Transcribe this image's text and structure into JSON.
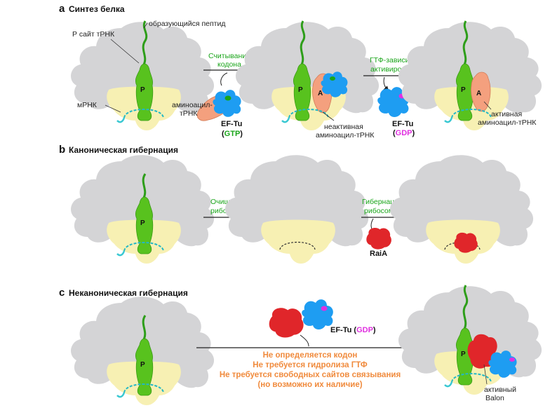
{
  "colors": {
    "large_subunit": "#d4d4d6",
    "small_subunit": "#f7f0b3",
    "p_site_trna": "#58c21e",
    "a_site_trna": "#f4a07e",
    "ef_tu": "#1e9df2",
    "nucleotide_gtp": "#1aa51a",
    "nucleotide_gdp": "#e030e0",
    "mrna": "#39c8d2",
    "raia_balon": "#e0262a",
    "process_label": "#1aa51a",
    "condition_text": "#f08a3c"
  },
  "panel_a": {
    "letter": "a",
    "title": "Синтез белка",
    "peptide_label": "образующийся  пептид",
    "p_site_label": "Р сайт тРНК",
    "mrna_label": "мРНК",
    "aminoacyl_label_1": "аминоацил-",
    "aminoacyl_label_2": "тРНК",
    "step1_line1": "Считывание",
    "step1_line2": "кодона",
    "step2_line1": "ГТФ-зависимое",
    "step2_line2": "активирование",
    "eftu": "EF-Tu",
    "gtp": "GTP",
    "gdp": "GDP",
    "inactive_1": "неактивная",
    "inactive_2": "аминоацил-тРНК",
    "active_1": "активная",
    "active_2": "аминоацил-тРНК",
    "p_letter": "P",
    "a_letter": "A"
  },
  "panel_b": {
    "letter": "b",
    "title": "Каноническая гибернация",
    "step1_line1": "Очищение",
    "step1_line2": "рибосомы",
    "step2_line1": "Гибернация",
    "step2_line2": "рибосомы",
    "raia": "RaiA",
    "p_letter": "P"
  },
  "panel_c": {
    "letter": "c",
    "title": "Неканоническая гибернация",
    "eftu": "EF-Tu",
    "gdp": "GDP",
    "conditions": [
      "Не определяется кодон",
      "Не требуется гидролиза ГТФ",
      "Не требуется свободных сайтов связывания",
      "(но возможно их наличие)"
    ],
    "active_label": "активный",
    "balon_label": "Balon",
    "p_letter": "P"
  }
}
